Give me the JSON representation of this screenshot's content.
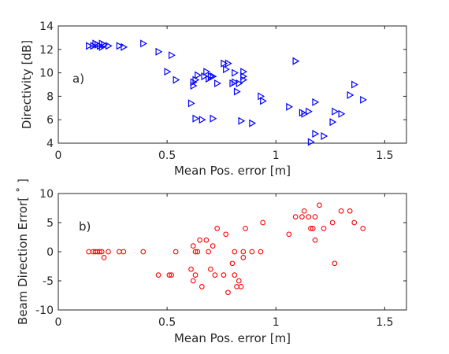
{
  "chart_data": [
    {
      "type": "scatter",
      "panel_label": "a)",
      "xlabel": "Mean Pos. error [m]",
      "ylabel": "Directivity [dB]",
      "xlim": [
        0,
        1.6
      ],
      "ylim": [
        4,
        14
      ],
      "xticks": [
        0,
        0.5,
        1,
        1.5
      ],
      "yticks": [
        4,
        6,
        8,
        10,
        12,
        14
      ],
      "xtick_labels": [
        "0",
        "0.5",
        "1",
        "1.5"
      ],
      "ytick_labels": [
        "4",
        "6",
        "8",
        "10",
        "12",
        "14"
      ],
      "grid": false,
      "marker": "triangle-right",
      "color": "#0000ff",
      "points": [
        [
          0.14,
          12.3
        ],
        [
          0.16,
          12.3
        ],
        [
          0.17,
          12.5
        ],
        [
          0.18,
          12.4
        ],
        [
          0.19,
          12.3
        ],
        [
          0.2,
          12.5
        ],
        [
          0.2,
          12.2
        ],
        [
          0.21,
          12.4
        ],
        [
          0.23,
          12.3
        ],
        [
          0.28,
          12.3
        ],
        [
          0.3,
          12.2
        ],
        [
          0.39,
          12.5
        ],
        [
          0.46,
          11.8
        ],
        [
          0.5,
          10.1
        ],
        [
          0.52,
          11.5
        ],
        [
          0.54,
          9.4
        ],
        [
          0.61,
          7.4
        ],
        [
          0.62,
          9.2
        ],
        [
          0.62,
          8.9
        ],
        [
          0.63,
          9.4
        ],
        [
          0.63,
          6.1
        ],
        [
          0.64,
          9.8
        ],
        [
          0.66,
          6.0
        ],
        [
          0.67,
          9.7
        ],
        [
          0.68,
          10.1
        ],
        [
          0.69,
          9.5
        ],
        [
          0.7,
          9.7
        ],
        [
          0.71,
          9.7
        ],
        [
          0.71,
          6.1
        ],
        [
          0.73,
          9.1
        ],
        [
          0.76,
          10.8
        ],
        [
          0.77,
          10.3
        ],
        [
          0.78,
          10.8
        ],
        [
          0.8,
          9.1
        ],
        [
          0.81,
          9.2
        ],
        [
          0.81,
          10.0
        ],
        [
          0.82,
          8.4
        ],
        [
          0.83,
          9.1
        ],
        [
          0.84,
          5.9
        ],
        [
          0.85,
          9.4
        ],
        [
          0.85,
          9.7
        ],
        [
          0.85,
          10.1
        ],
        [
          0.89,
          5.7
        ],
        [
          0.93,
          8.0
        ],
        [
          0.94,
          7.6
        ],
        [
          1.06,
          7.1
        ],
        [
          1.09,
          11.0
        ],
        [
          1.12,
          6.6
        ],
        [
          1.13,
          6.5
        ],
        [
          1.15,
          6.7
        ],
        [
          1.16,
          4.1
        ],
        [
          1.18,
          4.8
        ],
        [
          1.18,
          7.5
        ],
        [
          1.22,
          4.6
        ],
        [
          1.26,
          5.8
        ],
        [
          1.27,
          6.7
        ],
        [
          1.3,
          6.5
        ],
        [
          1.34,
          8.1
        ],
        [
          1.36,
          9.0
        ],
        [
          1.4,
          7.7
        ]
      ]
    },
    {
      "type": "scatter",
      "panel_label": "b)",
      "xlabel": "Mean Pos. error [m]",
      "ylabel": "Beam Direction Error[ ˚ ]",
      "xlim": [
        0,
        1.6
      ],
      "ylim": [
        -10,
        10
      ],
      "xticks": [
        0,
        0.5,
        1,
        1.5
      ],
      "yticks": [
        -10,
        -5,
        0,
        5,
        10
      ],
      "xtick_labels": [
        "0",
        "0.5",
        "1",
        "1.5"
      ],
      "ytick_labels": [
        "-10",
        "-5",
        "0",
        "5",
        "10"
      ],
      "grid": false,
      "marker": "circle",
      "color": "#ff0000",
      "points": [
        [
          0.14,
          0
        ],
        [
          0.16,
          0
        ],
        [
          0.17,
          0
        ],
        [
          0.18,
          0
        ],
        [
          0.19,
          0
        ],
        [
          0.2,
          0
        ],
        [
          0.21,
          -1
        ],
        [
          0.23,
          0
        ],
        [
          0.28,
          0
        ],
        [
          0.3,
          0
        ],
        [
          0.39,
          0
        ],
        [
          0.46,
          -4
        ],
        [
          0.51,
          -4
        ],
        [
          0.52,
          -4
        ],
        [
          0.54,
          0
        ],
        [
          0.61,
          -3
        ],
        [
          0.62,
          -5
        ],
        [
          0.62,
          1
        ],
        [
          0.63,
          0
        ],
        [
          0.63,
          -4
        ],
        [
          0.64,
          0
        ],
        [
          0.65,
          2
        ],
        [
          0.66,
          -6
        ],
        [
          0.68,
          2
        ],
        [
          0.69,
          0
        ],
        [
          0.7,
          -3
        ],
        [
          0.71,
          1
        ],
        [
          0.72,
          -4
        ],
        [
          0.73,
          4
        ],
        [
          0.76,
          -4
        ],
        [
          0.77,
          3
        ],
        [
          0.78,
          -7
        ],
        [
          0.8,
          -2
        ],
        [
          0.81,
          0
        ],
        [
          0.81,
          -4
        ],
        [
          0.82,
          -6
        ],
        [
          0.83,
          -5
        ],
        [
          0.84,
          -6
        ],
        [
          0.85,
          0
        ],
        [
          0.85,
          -1
        ],
        [
          0.86,
          4
        ],
        [
          0.89,
          0
        ],
        [
          0.93,
          0
        ],
        [
          0.94,
          5
        ],
        [
          1.06,
          3
        ],
        [
          1.09,
          6
        ],
        [
          1.12,
          6
        ],
        [
          1.13,
          7
        ],
        [
          1.15,
          6
        ],
        [
          1.16,
          4
        ],
        [
          1.17,
          4
        ],
        [
          1.18,
          6
        ],
        [
          1.18,
          2
        ],
        [
          1.2,
          8
        ],
        [
          1.22,
          4
        ],
        [
          1.26,
          5
        ],
        [
          1.27,
          -2
        ],
        [
          1.3,
          7
        ],
        [
          1.34,
          7
        ],
        [
          1.36,
          5
        ],
        [
          1.4,
          4
        ]
      ]
    }
  ]
}
